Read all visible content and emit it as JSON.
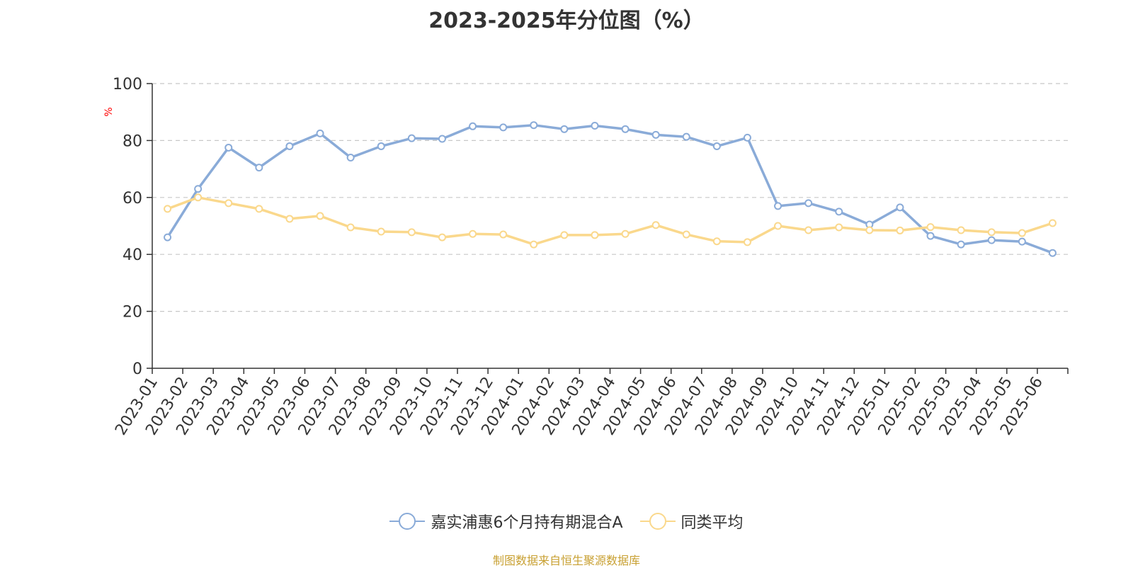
{
  "chart_data": {
    "type": "line",
    "title": "2023-2025年分位图（%）",
    "ylabel": "%",
    "xlabel": "",
    "ylim": [
      0,
      100
    ],
    "yticks": [
      0,
      20,
      40,
      60,
      80,
      100
    ],
    "grid": true,
    "legend_position": "bottom",
    "categories": [
      "2023-01",
      "2023-02",
      "2023-03",
      "2023-04",
      "2023-05",
      "2023-06",
      "2023-07",
      "2023-08",
      "2023-09",
      "2023-10",
      "2023-11",
      "2023-12",
      "2024-01",
      "2024-02",
      "2024-03",
      "2024-04",
      "2024-05",
      "2024-06",
      "2024-07",
      "2024-08",
      "2024-09",
      "2024-10",
      "2024-11",
      "2024-12",
      "2025-01",
      "2025-02",
      "2025-03",
      "2025-04",
      "2025-05",
      "2025-06"
    ],
    "series": [
      {
        "name": "嘉实浦惠6个月持有期混合A",
        "color": "#8aabd8",
        "values": [
          46,
          63,
          77.5,
          70.5,
          78,
          82.5,
          74,
          78,
          80.8,
          80.6,
          85,
          84.6,
          85.4,
          84,
          85.2,
          84,
          82,
          81.3,
          78,
          81,
          57,
          58,
          55,
          50.5,
          56.5,
          46.5,
          43.5,
          45,
          44.5,
          40.5
        ]
      },
      {
        "name": "同类平均",
        "color": "#fad88c",
        "values": [
          56,
          60,
          58,
          56,
          52.5,
          53.5,
          49.5,
          48,
          47.8,
          46,
          47.2,
          47,
          43.5,
          46.8,
          46.8,
          47.2,
          50.3,
          47,
          44.6,
          44.3,
          50,
          48.5,
          49.5,
          48.5,
          48.4,
          49.6,
          48.5,
          47.8,
          47.5,
          51
        ]
      }
    ]
  },
  "source_note": "制图数据来自恒生聚源数据库"
}
